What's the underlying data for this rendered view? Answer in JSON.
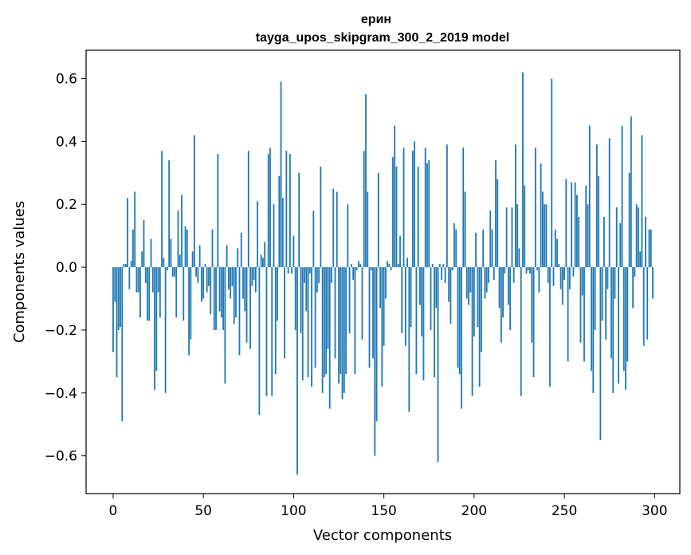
{
  "chart_data": {
    "type": "bar",
    "title": "ерин",
    "subtitle": "tayga_upos_skipgram_300_2_2019 model",
    "xlabel": "Vector components",
    "ylabel": "Components values",
    "xlim": [
      -15,
      314
    ],
    "ylim": [
      -0.72,
      0.69
    ],
    "x_ticks": [
      0,
      50,
      100,
      150,
      200,
      250,
      300
    ],
    "x_tick_labels": [
      "0",
      "50",
      "100",
      "150",
      "200",
      "250",
      "300"
    ],
    "y_ticks": [
      -0.6,
      -0.4,
      -0.2,
      0.0,
      0.2,
      0.4,
      0.6
    ],
    "y_tick_labels": [
      "−0.6",
      "−0.4",
      "−0.2",
      "0.0",
      "0.2",
      "0.4",
      "0.6"
    ],
    "bar_color": "#1f77b4",
    "grid": false,
    "values": [
      -0.27,
      -0.11,
      -0.35,
      -0.2,
      -0.19,
      -0.49,
      0.01,
      0.01,
      0.22,
      -0.07,
      0.02,
      0.12,
      0.24,
      -0.08,
      -0.08,
      -0.16,
      0.05,
      0.15,
      -0.05,
      -0.17,
      -0.17,
      0.09,
      -0.08,
      -0.39,
      -0.33,
      -0.08,
      -0.16,
      0.37,
      0.03,
      -0.4,
      -0.01,
      0.34,
      0.09,
      -0.03,
      -0.03,
      -0.16,
      0.18,
      0.04,
      0.23,
      -0.17,
      0.13,
      0.12,
      -0.28,
      -0.23,
      0.05,
      0.42,
      -0.03,
      -0.05,
      0.07,
      -0.11,
      -0.1,
      0.01,
      -0.08,
      -0.06,
      -0.15,
      0.12,
      -0.2,
      -0.2,
      0.36,
      -0.14,
      -0.16,
      -0.2,
      -0.37,
      0.07,
      -0.07,
      -0.1,
      -0.06,
      -0.18,
      -0.16,
      0.06,
      -0.28,
      0.11,
      -0.1,
      -0.14,
      -0.24,
      0.37,
      -0.26,
      -0.06,
      -0.04,
      -0.08,
      0.21,
      -0.47,
      0.04,
      0.03,
      0.08,
      -0.41,
      0.36,
      0.38,
      -0.41,
      0.2,
      -0.34,
      -0.17,
      0.29,
      0.59,
      0.22,
      -0.29,
      0.37,
      -0.02,
      0.36,
      -0.02,
      0.1,
      -0.2,
      -0.66,
      0.3,
      -0.21,
      -0.36,
      -0.05,
      -0.14,
      -0.35,
      -0.02,
      -0.38,
      0.18,
      -0.32,
      -0.08,
      -0.05,
      0.32,
      -0.4,
      -0.35,
      -0.34,
      -0.26,
      -0.45,
      -0.05,
      0.25,
      -0.29,
      0.24,
      -0.37,
      -0.34,
      -0.42,
      -0.4,
      -0.34,
      0.2,
      -0.21,
      0.01,
      -0.04,
      -0.34,
      -0.01,
      0.02,
      0.01,
      -0.23,
      0.37,
      0.55,
      0.24,
      -0.32,
      -0.01,
      -0.29,
      -0.6,
      -0.49,
      0.3,
      -0.13,
      -0.38,
      -0.25,
      -0.1,
      0.02,
      0.01,
      -0.01,
      0.35,
      0.45,
      0.32,
      0.01,
      0.1,
      -0.21,
      0.38,
      -0.25,
      0.03,
      -0.46,
      -0.19,
      0.37,
      0.4,
      -0.34,
      0.32,
      -0.12,
      -0.22,
      -0.36,
      0.38,
      0.33,
      0.34,
      -0.2,
      0.01,
      -0.35,
      -0.13,
      -0.62,
      0.01,
      -0.04,
      0.01,
      -0.05,
      0.39,
      -0.11,
      -0.18,
      -0.01,
      0.14,
      0.12,
      -0.32,
      -0.34,
      -0.45,
      0.38,
      0.24,
      -0.1,
      -0.12,
      -0.08,
      -0.41,
      -0.22,
      0.11,
      -0.19,
      -0.38,
      -0.27,
      0.12,
      -0.1,
      -0.08,
      -0.05,
      0.18,
      0.12,
      -0.04,
      0.34,
      0.28,
      -0.13,
      -0.24,
      -0.16,
      -0.02,
      0.19,
      -0.12,
      -0.2,
      0.19,
      -0.05,
      0.39,
      0.2,
      0.06,
      -0.41,
      0.62,
      0.26,
      -0.02,
      -0.01,
      -0.02,
      -0.24,
      -0.35,
      0.38,
      -0.01,
      -0.08,
      0.33,
      0.24,
      0.2,
      0.2,
      -0.05,
      -0.38,
      0.6,
      -0.06,
      0.12,
      0.09,
      0.01,
      -0.07,
      -0.12,
      -0.04,
      0.28,
      -0.3,
      -0.07,
      0.27,
      -0.03,
      0.27,
      0.23,
      0.16,
      -0.24,
      -0.09,
      -0.3,
      0.26,
      0.2,
      0.45,
      -0.33,
      -0.4,
      -0.2,
      0.39,
      0.29,
      -0.55,
      -0.17,
      0.16,
      -0.23,
      -0.07,
      0.41,
      -0.29,
      -0.4,
      -0.1,
      0.19,
      -0.37,
      0.14,
      0.45,
      -0.33,
      -0.39,
      -0.3,
      0.3,
      0.48,
      -0.13,
      -0.03,
      0.2,
      0.19,
      0.05,
      0.42,
      -0.25,
      0.16,
      -0.23,
      0.12,
      0.12,
      -0.1
    ]
  }
}
